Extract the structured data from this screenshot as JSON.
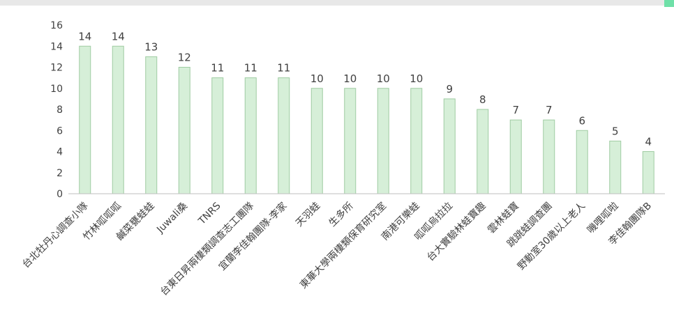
{
  "chart_data": {
    "type": "bar",
    "categories": [
      "台北牡丹心調查小隊",
      "竹林呱呱呱",
      "鹹菜甕蛙蛙",
      "Juwali桑",
      "TNRS",
      "台東日昇兩棲類調查志工團隊",
      "宜蘭李佳翰團隊-李家",
      "天羽蛙",
      "生多所",
      "東華大學兩棲類保育研究室",
      "南港可樂蛙",
      "呱呱烏拉拉",
      "台大實驗林蛙寶趣",
      "雲林蛙寶",
      "跳跳蛙調查團",
      "野動室30歲以上老人",
      "嘰哩呱啦",
      "李佳翰團隊B"
    ],
    "values": [
      14,
      14,
      13,
      12,
      11,
      11,
      11,
      10,
      10,
      10,
      10,
      9,
      8,
      7,
      7,
      6,
      5,
      4
    ],
    "ylim": [
      0,
      16
    ],
    "yticks": [
      "0",
      "2",
      "4",
      "6",
      "8",
      "10",
      "12",
      "14",
      "16"
    ],
    "grid": false,
    "legend": "none",
    "bar_color": "#d6efd8",
    "bar_edge_color": "#9fcca2"
  }
}
